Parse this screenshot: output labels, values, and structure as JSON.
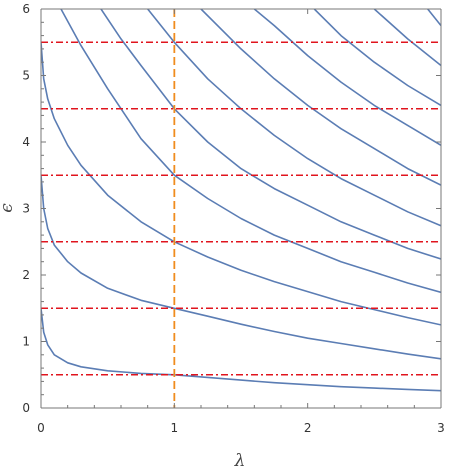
{
  "chart_data": {
    "type": "line",
    "title": "",
    "xlabel": "λ",
    "ylabel": "ϵ",
    "xlim": [
      0,
      3
    ],
    "ylim": [
      0,
      6
    ],
    "x_ticks": [
      "0",
      "1",
      "2",
      "3"
    ],
    "y_ticks": [
      "0",
      "1",
      "2",
      "3",
      "4",
      "5",
      "6"
    ],
    "grid": false,
    "legend": "none",
    "colors": {
      "curves": "#5b7db4",
      "horizontal_lines": "#e0141e",
      "vertical_line": "#f08c1e",
      "axes": "#777777"
    },
    "series": [
      {
        "kind": "curve",
        "x": [
          0.0,
          0.02,
          0.05,
          0.1,
          0.2,
          0.3,
          0.5,
          0.75,
          1.0,
          1.25,
          1.5,
          1.75,
          2.0,
          2.25,
          2.5,
          2.75,
          3.0
        ],
        "y": [
          1.5,
          1.14,
          0.95,
          0.8,
          0.68,
          0.62,
          0.56,
          0.52,
          0.5,
          0.46,
          0.42,
          0.38,
          0.35,
          0.32,
          0.3,
          0.28,
          0.26
        ]
      },
      {
        "kind": "curve",
        "x": [
          0.0,
          0.02,
          0.05,
          0.1,
          0.2,
          0.3,
          0.5,
          0.75,
          1.0,
          1.25,
          1.5,
          1.75,
          2.0,
          2.25,
          2.5,
          2.75,
          3.0
        ],
        "y": [
          3.5,
          3.0,
          2.7,
          2.45,
          2.2,
          2.03,
          1.8,
          1.62,
          1.5,
          1.38,
          1.26,
          1.15,
          1.05,
          0.97,
          0.89,
          0.81,
          0.74
        ]
      },
      {
        "kind": "curve",
        "x": [
          0.0,
          0.02,
          0.05,
          0.1,
          0.2,
          0.3,
          0.5,
          0.75,
          1.0,
          1.25,
          1.5,
          1.75,
          2.0,
          2.25,
          2.5,
          2.75,
          3.0
        ],
        "y": [
          5.5,
          4.95,
          4.65,
          4.35,
          3.95,
          3.65,
          3.2,
          2.8,
          2.5,
          2.27,
          2.07,
          1.9,
          1.75,
          1.6,
          1.48,
          1.36,
          1.25
        ]
      },
      {
        "kind": "curve",
        "x": [
          0.15,
          0.3,
          0.5,
          0.75,
          1.0,
          1.25,
          1.5,
          1.75,
          2.0,
          2.25,
          2.5,
          2.75,
          3.0
        ],
        "y": [
          6.0,
          5.45,
          4.8,
          4.05,
          3.5,
          3.15,
          2.85,
          2.6,
          2.4,
          2.2,
          2.04,
          1.88,
          1.74
        ]
      },
      {
        "kind": "curve",
        "x": [
          0.45,
          0.6,
          0.75,
          1.0,
          1.25,
          1.5,
          1.75,
          2.0,
          2.25,
          2.5,
          2.75,
          3.0
        ],
        "y": [
          6.0,
          5.55,
          5.15,
          4.5,
          4.0,
          3.6,
          3.3,
          3.05,
          2.8,
          2.6,
          2.4,
          2.24
        ]
      },
      {
        "kind": "curve",
        "x": [
          0.8,
          1.0,
          1.25,
          1.5,
          1.75,
          2.0,
          2.25,
          2.5,
          2.75,
          3.0
        ],
        "y": [
          6.0,
          5.5,
          4.95,
          4.5,
          4.1,
          3.75,
          3.45,
          3.2,
          2.95,
          2.74
        ]
      },
      {
        "kind": "curve",
        "x": [
          1.2,
          1.5,
          1.75,
          2.0,
          2.25,
          2.5,
          2.75,
          3.0
        ],
        "y": [
          6.0,
          5.4,
          4.95,
          4.55,
          4.2,
          3.9,
          3.6,
          3.35
        ]
      },
      {
        "kind": "curve",
        "x": [
          1.6,
          1.75,
          2.0,
          2.25,
          2.5,
          2.75,
          3.0
        ],
        "y": [
          6.0,
          5.75,
          5.3,
          4.9,
          4.55,
          4.25,
          3.95
        ]
      },
      {
        "kind": "curve",
        "x": [
          2.05,
          2.25,
          2.5,
          2.75,
          3.0
        ],
        "y": [
          6.0,
          5.6,
          5.2,
          4.85,
          4.55
        ]
      },
      {
        "kind": "curve",
        "x": [
          2.5,
          2.75,
          3.0
        ],
        "y": [
          6.0,
          5.55,
          5.15
        ]
      },
      {
        "kind": "curve",
        "x": [
          2.9,
          3.0
        ],
        "y": [
          6.0,
          5.75
        ]
      },
      {
        "kind": "hline",
        "y": 0.5
      },
      {
        "kind": "hline",
        "y": 1.5
      },
      {
        "kind": "hline",
        "y": 2.5
      },
      {
        "kind": "hline",
        "y": 3.5
      },
      {
        "kind": "hline",
        "y": 4.5
      },
      {
        "kind": "hline",
        "y": 5.5
      },
      {
        "kind": "vline",
        "x": 1
      }
    ]
  }
}
